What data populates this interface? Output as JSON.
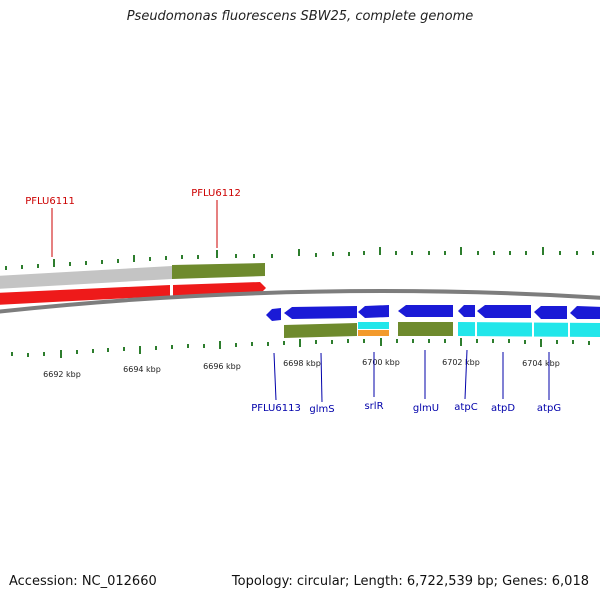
{
  "title": "Pseudomonas fluorescens SBW25, complete genome",
  "footer": {
    "accession": "Accession: NC_012660",
    "summary": "Topology: circular; Length: 6,722,539 bp; Genes: 6,018"
  },
  "colors": {
    "grey_band": "#c4c4c4",
    "green_band": "#6e8a2d",
    "red_gene": "#ee1a1a",
    "blue_gene": "#1a1ad6",
    "cyan_gene": "#22e6ea",
    "orange_block": "#f39a2c",
    "backbone": "#7d7d7d",
    "tick": "#2d7d2d",
    "outer_label": "#cc0000",
    "inner_label": "#0000aa"
  },
  "scale_labels": [
    "6692 kbp",
    "6694 kbp",
    "6696 kbp",
    "6698 kbp",
    "6700 kbp",
    "6702 kbp",
    "6704 kbp"
  ],
  "outer_labels": [
    "PFLU6111",
    "PFLU6112"
  ],
  "inner_labels": [
    "PFLU6113",
    "glmS",
    "srlR",
    "glmU",
    "atpC",
    "atpD",
    "atpG"
  ]
}
